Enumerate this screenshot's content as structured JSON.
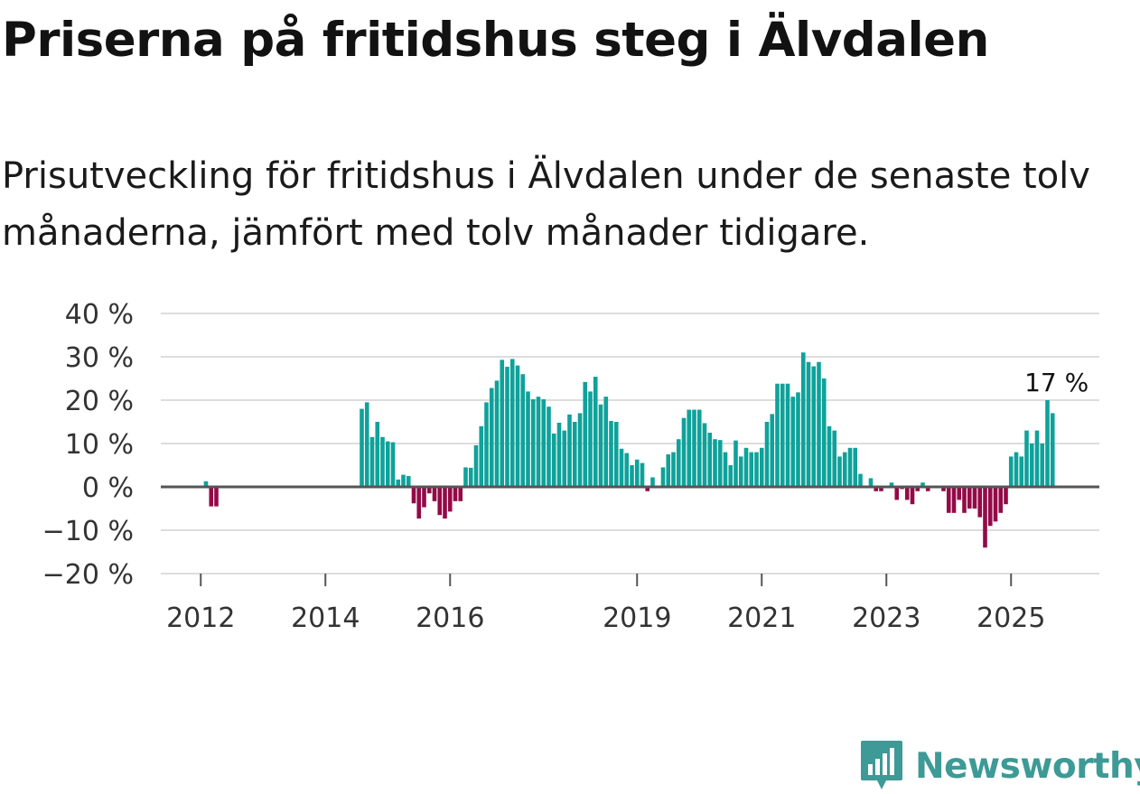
{
  "title": "Priserna på fritidshus steg i Älvdalen",
  "subtitle": "Prisutveckling för fritidshus i Älvdalen under de senaste tolv månaderna, jämfört med tolv månader tidigare.",
  "brand": {
    "name": "Newsworthy",
    "color": "#3d9a96"
  },
  "colors": {
    "positive": "#0ea29a",
    "negative": "#930a47",
    "zero_line": "#555555",
    "grid": "#dddddd"
  },
  "chart_data": {
    "type": "bar",
    "title": "Priserna på fritidshus steg i Älvdalen",
    "xlabel": "",
    "ylabel": "",
    "ylim": [
      -20,
      40
    ],
    "y_ticks": [
      "40 %",
      "30 %",
      "20 %",
      "10 %",
      "0 %",
      "−10 %",
      "−20 %"
    ],
    "y_tick_values": [
      40,
      30,
      20,
      10,
      0,
      -10,
      -20
    ],
    "x_ticks": [
      {
        "label": "2012",
        "index": 23
      },
      {
        "label": "2014",
        "index": 47
      },
      {
        "label": "2016",
        "index": 71
      },
      {
        "label": "2019",
        "index": 107
      },
      {
        "label": "2021",
        "index": 131
      },
      {
        "label": "2023",
        "index": 155
      },
      {
        "label": "2025",
        "index": 179
      }
    ],
    "first_month": "2010-01",
    "series": [
      {
        "name": "Prisutveckling (%)",
        "values": [
          null,
          null,
          null,
          null,
          null,
          null,
          null,
          null,
          null,
          null,
          null,
          null,
          null,
          null,
          null,
          null,
          null,
          null,
          null,
          null,
          null,
          null,
          null,
          null,
          1.3,
          -4.5,
          -4.5,
          null,
          null,
          null,
          null,
          null,
          null,
          null,
          null,
          null,
          null,
          null,
          null,
          null,
          null,
          null,
          null,
          null,
          null,
          null,
          null,
          null,
          null,
          null,
          null,
          null,
          null,
          null,
          null,
          null,
          null,
          null,
          null,
          null,
          null,
          null,
          null,
          null,
          null,
          null,
          null,
          null,
          null,
          null,
          null,
          null,
          null,
          null,
          null,
          null,
          null,
          null,
          null,
          null,
          null,
          null,
          null,
          null,
          null,
          null,
          null,
          null,
          null,
          null,
          null,
          null,
          null,
          null,
          null,
          null,
          null,
          null,
          null,
          null,
          null,
          null,
          null,
          null,
          null,
          null,
          null,
          null,
          null,
          null,
          null,
          null,
          null,
          null,
          null,
          null,
          null,
          null,
          null,
          null,
          null,
          null,
          null,
          null,
          null,
          null,
          null,
          null,
          null,
          null,
          null,
          null,
          null,
          null,
          null,
          null,
          null,
          null,
          null,
          null,
          null,
          null,
          null,
          null,
          null,
          null,
          null,
          null,
          null,
          null,
          null,
          null,
          null,
          null,
          null,
          null,
          null,
          null,
          null,
          null,
          null,
          null,
          null,
          null,
          null,
          null,
          null,
          null,
          null,
          null,
          null,
          null,
          null,
          null,
          null,
          null,
          null,
          null,
          null,
          null,
          null,
          null,
          null,
          null,
          null,
          null,
          null,
          null,
          null,
          null,
          null,
          null,
          null,
          null,
          null,
          null,
          null,
          null,
          null,
          null,
          null,
          null,
          null,
          null,
          null,
          null,
          null,
          null
        ]
      }
    ],
    "monthly": [
      {
        "m": "2012-01",
        "v": 1.3
      },
      {
        "m": "2012-02",
        "v": -4.5
      },
      {
        "m": "2012-03",
        "v": -4.5
      },
      {
        "m": "2014-07",
        "v": 18
      },
      {
        "m": "2014-08",
        "v": 19.5
      },
      {
        "m": "2014-09",
        "v": 11.5
      },
      {
        "m": "2014-10",
        "v": 15
      },
      {
        "m": "2014-11",
        "v": 11.5
      },
      {
        "m": "2014-12",
        "v": 10.5
      },
      {
        "m": "2015-01",
        "v": 10.3
      },
      {
        "m": "2015-02",
        "v": 1.7
      },
      {
        "m": "2015-03",
        "v": 2.8
      },
      {
        "m": "2015-04",
        "v": 2.5
      },
      {
        "m": "2015-05",
        "v": -3.8
      },
      {
        "m": "2015-06",
        "v": -7.3
      },
      {
        "m": "2015-07",
        "v": -4.7
      },
      {
        "m": "2015-08",
        "v": -1.5
      },
      {
        "m": "2015-09",
        "v": -3.3
      },
      {
        "m": "2015-10",
        "v": -6.5
      },
      {
        "m": "2015-11",
        "v": -7.3
      },
      {
        "m": "2015-12",
        "v": -5.7
      },
      {
        "m": "2016-01",
        "v": -3.3
      },
      {
        "m": "2016-02",
        "v": -3.3
      },
      {
        "m": "2016-03",
        "v": 4.5
      },
      {
        "m": "2016-04",
        "v": 4.4
      },
      {
        "m": "2016-05",
        "v": 9.6
      },
      {
        "m": "2016-06",
        "v": 14
      },
      {
        "m": "2016-07",
        "v": 19.5
      },
      {
        "m": "2016-08",
        "v": 22.8
      },
      {
        "m": "2016-09",
        "v": 24.5
      },
      {
        "m": "2016-10",
        "v": 29.3
      },
      {
        "m": "2016-11",
        "v": 27.7
      },
      {
        "m": "2016-12",
        "v": 29.5
      },
      {
        "m": "2017-01",
        "v": 28
      },
      {
        "m": "2017-02",
        "v": 26
      },
      {
        "m": "2017-03",
        "v": 22
      },
      {
        "m": "2017-04",
        "v": 20.2
      },
      {
        "m": "2017-05",
        "v": 20.8
      },
      {
        "m": "2017-06",
        "v": 20.2
      },
      {
        "m": "2017-07",
        "v": 18.5
      },
      {
        "m": "2017-08",
        "v": 12.3
      },
      {
        "m": "2017-09",
        "v": 14.8
      },
      {
        "m": "2017-10",
        "v": 13
      },
      {
        "m": "2017-11",
        "v": 16.7
      },
      {
        "m": "2017-12",
        "v": 15
      },
      {
        "m": "2018-01",
        "v": 17
      },
      {
        "m": "2018-02",
        "v": 24.2
      },
      {
        "m": "2018-03",
        "v": 22
      },
      {
        "m": "2018-04",
        "v": 25.4
      },
      {
        "m": "2018-05",
        "v": 19
      },
      {
        "m": "2018-06",
        "v": 20.8
      },
      {
        "m": "2018-07",
        "v": 15.2
      },
      {
        "m": "2018-08",
        "v": 15
      },
      {
        "m": "2018-09",
        "v": 8.8
      },
      {
        "m": "2018-10",
        "v": 7.8
      },
      {
        "m": "2018-11",
        "v": 5
      },
      {
        "m": "2018-12",
        "v": 6.3
      },
      {
        "m": "2019-01",
        "v": 5.5
      },
      {
        "m": "2019-02",
        "v": -1
      },
      {
        "m": "2019-03",
        "v": 2.2
      },
      {
        "m": "2019-04",
        "v": null
      },
      {
        "m": "2019-05",
        "v": 4.5
      },
      {
        "m": "2019-06",
        "v": 7.5
      },
      {
        "m": "2019-07",
        "v": 8
      },
      {
        "m": "2019-08",
        "v": 11
      },
      {
        "m": "2019-09",
        "v": 15.9
      },
      {
        "m": "2019-10",
        "v": 17.8
      },
      {
        "m": "2019-11",
        "v": 17.8
      },
      {
        "m": "2019-12",
        "v": 17.8
      },
      {
        "m": "2020-01",
        "v": 14.7
      },
      {
        "m": "2020-02",
        "v": 12.5
      },
      {
        "m": "2020-03",
        "v": 11
      },
      {
        "m": "2020-04",
        "v": 10.8
      },
      {
        "m": "2020-05",
        "v": 8
      },
      {
        "m": "2020-06",
        "v": 5
      },
      {
        "m": "2020-07",
        "v": 10.7
      },
      {
        "m": "2020-08",
        "v": 7
      },
      {
        "m": "2020-09",
        "v": 9
      },
      {
        "m": "2020-10",
        "v": 8
      },
      {
        "m": "2020-11",
        "v": 8
      },
      {
        "m": "2020-12",
        "v": 9
      },
      {
        "m": "2021-01",
        "v": 15
      },
      {
        "m": "2021-02",
        "v": 16.8
      },
      {
        "m": "2021-03",
        "v": 23.8
      },
      {
        "m": "2021-04",
        "v": 23.8
      },
      {
        "m": "2021-05",
        "v": 23.8
      },
      {
        "m": "2021-06",
        "v": 20.8
      },
      {
        "m": "2021-07",
        "v": 21.8
      },
      {
        "m": "2021-08",
        "v": 31
      },
      {
        "m": "2021-09",
        "v": 28.8
      },
      {
        "m": "2021-10",
        "v": 27.8
      },
      {
        "m": "2021-11",
        "v": 28.8
      },
      {
        "m": "2021-12",
        "v": 25
      },
      {
        "m": "2022-01",
        "v": 14
      },
      {
        "m": "2022-02",
        "v": 13
      },
      {
        "m": "2022-03",
        "v": 7
      },
      {
        "m": "2022-04",
        "v": 8
      },
      {
        "m": "2022-05",
        "v": 9
      },
      {
        "m": "2022-06",
        "v": 9
      },
      {
        "m": "2022-07",
        "v": 3
      },
      {
        "m": "2022-08",
        "v": null
      },
      {
        "m": "2022-09",
        "v": 2
      },
      {
        "m": "2022-10",
        "v": -1
      },
      {
        "m": "2022-11",
        "v": -1
      },
      {
        "m": "2022-12",
        "v": null
      },
      {
        "m": "2023-01",
        "v": 1
      },
      {
        "m": "2023-02",
        "v": -3
      },
      {
        "m": "2023-03",
        "v": -0.5
      },
      {
        "m": "2023-04",
        "v": -3
      },
      {
        "m": "2023-05",
        "v": -4
      },
      {
        "m": "2023-06",
        "v": -1
      },
      {
        "m": "2023-07",
        "v": 1
      },
      {
        "m": "2023-08",
        "v": -1
      },
      {
        "m": "2023-09",
        "v": null
      },
      {
        "m": "2023-10",
        "v": null
      },
      {
        "m": "2023-11",
        "v": -1
      },
      {
        "m": "2023-12",
        "v": -6
      },
      {
        "m": "2024-01",
        "v": -6
      },
      {
        "m": "2024-02",
        "v": -3
      },
      {
        "m": "2024-03",
        "v": -6
      },
      {
        "m": "2024-04",
        "v": -5
      },
      {
        "m": "2024-05",
        "v": -5
      },
      {
        "m": "2024-06",
        "v": -7
      },
      {
        "m": "2024-07",
        "v": -14
      },
      {
        "m": "2024-08",
        "v": -9
      },
      {
        "m": "2024-09",
        "v": -8
      },
      {
        "m": "2024-10",
        "v": -6
      },
      {
        "m": "2024-11",
        "v": -4
      },
      {
        "m": "2024-12",
        "v": 7
      },
      {
        "m": "2025-01",
        "v": 8
      },
      {
        "m": "2025-02",
        "v": 7
      },
      {
        "m": "2025-03",
        "v": 13
      },
      {
        "m": "2025-04",
        "v": 10
      },
      {
        "m": "2025-05",
        "v": 13
      },
      {
        "m": "2025-06",
        "v": 10
      },
      {
        "m": "2025-07",
        "v": 20
      },
      {
        "m": "2025-08",
        "v": 17
      }
    ],
    "annotation": {
      "label": "17 %",
      "month": "2025-08",
      "value": 17
    }
  }
}
